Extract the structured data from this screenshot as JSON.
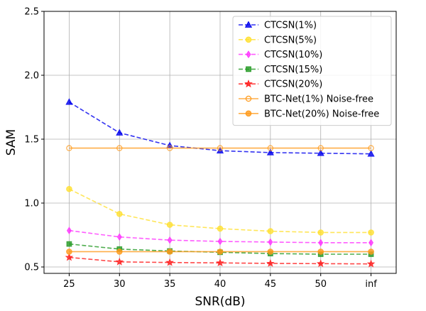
{
  "chart_data": {
    "type": "line",
    "xlabel": "SNR(dB)",
    "ylabel": "SAM",
    "categories": [
      "25",
      "30",
      "35",
      "40",
      "45",
      "50",
      "inf"
    ],
    "ylim": [
      0.45,
      2.5
    ],
    "yticks": [
      0.5,
      1.0,
      1.5,
      2.0,
      2.5
    ],
    "ytick_labels": [
      "0.5",
      "1.0",
      "1.5",
      "2.0",
      "2.5"
    ],
    "grid": true,
    "legend_position": "top-right",
    "series": [
      {
        "name": "CTCSN(1%)",
        "color": "#0000ee",
        "marker": "triangle",
        "dash": "dashed",
        "values": [
          1.79,
          1.55,
          1.45,
          1.41,
          1.395,
          1.39,
          1.385
        ]
      },
      {
        "name": "CTCSN(5%)",
        "color": "#ffe030",
        "marker": "circle",
        "dash": "dashed",
        "values": [
          1.11,
          0.915,
          0.83,
          0.8,
          0.78,
          0.77,
          0.77
        ]
      },
      {
        "name": "CTCSN(10%)",
        "color": "#ff33ff",
        "marker": "diamond",
        "dash": "dashed",
        "values": [
          0.785,
          0.735,
          0.71,
          0.7,
          0.695,
          0.69,
          0.69
        ]
      },
      {
        "name": "CTCSN(15%)",
        "color": "#229922",
        "marker": "square",
        "dash": "dashed",
        "values": [
          0.68,
          0.64,
          0.625,
          0.615,
          0.605,
          0.6,
          0.6
        ]
      },
      {
        "name": "CTCSN(20%)",
        "color": "#ff1a1a",
        "marker": "star",
        "dash": "dashed",
        "values": [
          0.575,
          0.54,
          0.535,
          0.532,
          0.528,
          0.526,
          0.524
        ]
      },
      {
        "name": "BTC-Net(1%) Noise-free",
        "color": "#ff9a1a",
        "marker": "circle-open",
        "dash": "solid",
        "values": [
          1.43,
          1.43,
          1.43,
          1.43,
          1.43,
          1.43,
          1.43
        ]
      },
      {
        "name": "BTC-Net(20%) Noise-free",
        "color": "#ff9a1a",
        "marker": "circle",
        "dash": "solid",
        "values": [
          0.62,
          0.62,
          0.62,
          0.62,
          0.62,
          0.62,
          0.62
        ]
      }
    ]
  }
}
